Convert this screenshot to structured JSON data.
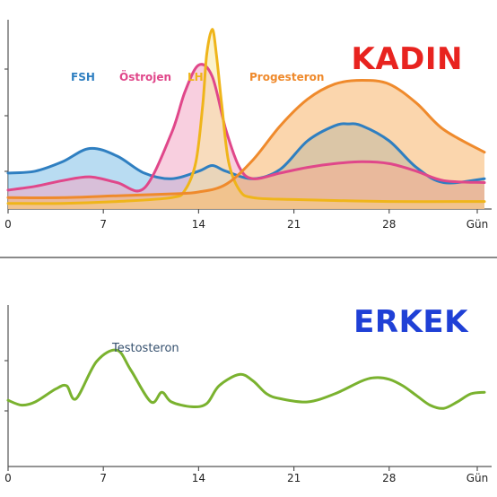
{
  "chart_data": [
    {
      "type": "area",
      "title": "KADIN",
      "title_color": "#e8231f",
      "x_tick_labels": [
        "0",
        "7",
        "14",
        "21",
        "28",
        "Gün"
      ],
      "x_ticks": [
        0,
        7,
        14,
        21,
        28
      ],
      "xlim": [
        0,
        35
      ],
      "ylim": [
        0,
        100
      ],
      "grid": false,
      "legend_position": "top-left",
      "series": [
        {
          "name": "FSH",
          "color": "#2f7fc1",
          "fill": "#7fc0e8",
          "x": [
            0,
            2,
            4,
            6,
            8,
            10,
            12,
            14,
            15,
            16,
            18,
            20,
            22,
            24,
            25,
            26,
            28,
            30,
            32,
            35
          ],
          "y": [
            19,
            20,
            25,
            32,
            28,
            19,
            16,
            20,
            23,
            20,
            16,
            21,
            36,
            44,
            45,
            44,
            36,
            22,
            14,
            16
          ]
        },
        {
          "name": "Östrojen",
          "color": "#e0478a",
          "fill": "#f2a7c5",
          "x": [
            0,
            2,
            4,
            6,
            8,
            10,
            12,
            13,
            14,
            15,
            16,
            17,
            18,
            20,
            22,
            24,
            26,
            28,
            30,
            32,
            35
          ],
          "y": [
            10,
            12,
            15,
            17,
            14,
            11,
            40,
            62,
            76,
            70,
            42,
            22,
            16,
            19,
            22,
            24,
            25,
            24,
            20,
            15,
            14
          ]
        },
        {
          "name": "LH",
          "color": "#efb51a",
          "fill": "#f8e7a0",
          "x": [
            0,
            4,
            8,
            12,
            13,
            13.8,
            14.3,
            14.6,
            15,
            15.3,
            15.7,
            16.2,
            17,
            18,
            21,
            28,
            35
          ],
          "y": [
            3,
            3,
            4,
            6,
            10,
            25,
            55,
            82,
            95,
            82,
            55,
            25,
            10,
            6,
            5,
            4,
            4
          ]
        },
        {
          "name": "Progesteron",
          "color": "#ef8a2c",
          "fill": "#f8b46a",
          "x": [
            0,
            4,
            8,
            12,
            14,
            16,
            18,
            20,
            22,
            24,
            26,
            28,
            30,
            32,
            35
          ],
          "y": [
            6,
            6,
            7,
            8,
            9,
            13,
            26,
            44,
            58,
            66,
            68,
            66,
            56,
            42,
            30
          ]
        }
      ]
    },
    {
      "type": "line",
      "title": "ERKEK",
      "title_color": "#1f40d6",
      "x_tick_labels": [
        "0",
        "7",
        "14",
        "21",
        "28",
        "Gün"
      ],
      "x_ticks": [
        0,
        7,
        14,
        21,
        28
      ],
      "xlim": [
        0,
        35
      ],
      "ylim": [
        0,
        100
      ],
      "grid": false,
      "annotation": "Testosteron",
      "series": [
        {
          "color": "#7ab22f",
          "x": [
            0,
            1,
            2,
            3.5,
            4.3,
            5,
            6.5,
            8,
            9,
            10.5,
            11.3,
            12,
            13.5,
            14.6,
            15.5,
            17,
            18,
            19,
            20,
            22,
            24,
            26,
            27,
            28,
            29,
            30,
            31,
            32,
            33,
            34,
            35
          ],
          "y": [
            41,
            38,
            40,
            48,
            50,
            42,
            65,
            72,
            60,
            40,
            46,
            40,
            37,
            39,
            50,
            57,
            53,
            45,
            42,
            40,
            45,
            53,
            55,
            54,
            50,
            44,
            38,
            36,
            40,
            45,
            46
          ]
        }
      ]
    }
  ]
}
